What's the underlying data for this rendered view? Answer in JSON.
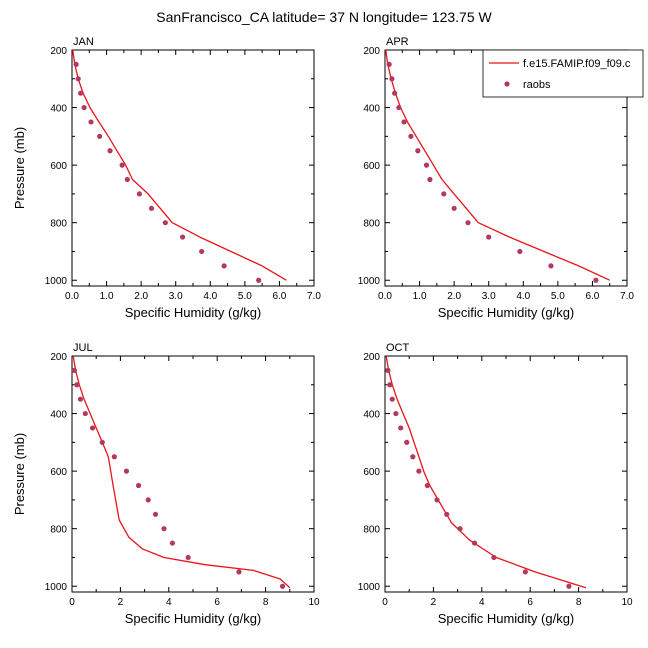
{
  "title": "SanFrancisco_CA  latitude= 37 N longitude= 123.75 W",
  "colors": {
    "model": "#e8141c",
    "obs": "#b33a5e",
    "axis": "#000000"
  },
  "legend": {
    "model_label": "f.e15.FAMIP.f09_f09.c",
    "obs_label": "raobs"
  },
  "chart_data": [
    {
      "type": "line",
      "panel": "JAN",
      "title": "JAN",
      "xlabel": "Specific Humidity (g/kg)",
      "ylabel": "Pressure (mb)",
      "xlim": [
        0,
        7
      ],
      "ylim": [
        200,
        1020
      ],
      "y_reversed": true,
      "xticks": [
        0,
        1,
        2,
        3,
        4,
        5,
        6,
        7
      ],
      "xtick_labels": [
        "0.0",
        "1.0",
        "2.0",
        "3.0",
        "4.0",
        "5.0",
        "6.0",
        "7.0"
      ],
      "yticks": [
        200,
        400,
        600,
        800,
        1000
      ],
      "ytick_labels": [
        "200",
        "400",
        "600",
        "800",
        "1000"
      ],
      "series": [
        {
          "name": "f.e15.FAMIP.f09_f09.c",
          "style": "line",
          "x": [
            0.02,
            0.08,
            0.18,
            0.32,
            0.52,
            0.78,
            1.05,
            1.3,
            1.55,
            1.75,
            2.2,
            2.9,
            3.7,
            4.6,
            5.5,
            6.2
          ],
          "y": [
            200,
            250,
            300,
            350,
            400,
            450,
            500,
            550,
            600,
            650,
            700,
            800,
            850,
            900,
            950,
            1000
          ]
        },
        {
          "name": "raobs",
          "style": "markers",
          "x": [
            0.12,
            0.18,
            0.25,
            0.35,
            0.55,
            0.8,
            1.1,
            1.45,
            1.6,
            1.95,
            2.3,
            2.7,
            3.2,
            3.75,
            4.4,
            5.4
          ],
          "y": [
            250,
            300,
            350,
            400,
            450,
            500,
            550,
            600,
            650,
            700,
            750,
            800,
            850,
            900,
            950,
            1000
          ]
        }
      ]
    },
    {
      "type": "line",
      "panel": "APR",
      "title": "APR",
      "xlabel": "Specific Humidity (g/kg)",
      "ylabel": "",
      "xlim": [
        0,
        7
      ],
      "ylim": [
        200,
        1020
      ],
      "y_reversed": true,
      "xticks": [
        0,
        1,
        2,
        3,
        4,
        5,
        6,
        7
      ],
      "xtick_labels": [
        "0.0",
        "1.0",
        "2.0",
        "3.0",
        "4.0",
        "5.0",
        "6.0",
        "7.0"
      ],
      "yticks": [
        200,
        400,
        600,
        800,
        1000
      ],
      "ytick_labels": [
        "200",
        "400",
        "600",
        "800",
        "1000"
      ],
      "series": [
        {
          "name": "f.e15.FAMIP.f09_f09.c",
          "style": "line",
          "x": [
            0.02,
            0.08,
            0.18,
            0.3,
            0.45,
            0.65,
            0.9,
            1.15,
            1.4,
            1.65,
            2.0,
            2.7,
            3.6,
            4.6,
            5.6,
            6.5
          ],
          "y": [
            200,
            250,
            300,
            350,
            400,
            450,
            500,
            550,
            600,
            650,
            700,
            800,
            850,
            900,
            950,
            1000
          ]
        },
        {
          "name": "raobs",
          "style": "markers",
          "x": [
            0.12,
            0.2,
            0.28,
            0.4,
            0.55,
            0.75,
            0.95,
            1.2,
            1.3,
            1.7,
            2.0,
            2.4,
            3.0,
            3.9,
            4.8,
            6.1
          ],
          "y": [
            250,
            300,
            350,
            400,
            450,
            500,
            550,
            600,
            650,
            700,
            750,
            800,
            850,
            900,
            950,
            1000
          ]
        }
      ]
    },
    {
      "type": "line",
      "panel": "JUL",
      "title": "JUL",
      "xlabel": "Specific Humidity (g/kg)",
      "ylabel": "Pressure (mb)",
      "xlim": [
        0,
        10
      ],
      "ylim": [
        200,
        1020
      ],
      "y_reversed": true,
      "xticks": [
        0,
        2,
        4,
        6,
        8,
        10
      ],
      "xtick_labels": [
        "0",
        "2",
        "4",
        "6",
        "8",
        "10"
      ],
      "yticks": [
        200,
        400,
        600,
        800,
        1000
      ],
      "ytick_labels": [
        "200",
        "400",
        "600",
        "800",
        "1000"
      ],
      "series": [
        {
          "name": "f.e15.FAMIP.f09_f09.c",
          "style": "line",
          "x": [
            0.05,
            0.15,
            0.3,
            0.5,
            0.75,
            1.0,
            1.25,
            1.5,
            1.7,
            1.95,
            2.35,
            2.9,
            3.8,
            5.5,
            7.5,
            8.6,
            9.0
          ],
          "y": [
            200,
            250,
            300,
            350,
            400,
            450,
            500,
            550,
            650,
            770,
            830,
            870,
            900,
            925,
            945,
            975,
            1005
          ]
        },
        {
          "name": "raobs",
          "style": "markers",
          "x": [
            0.1,
            0.2,
            0.35,
            0.55,
            0.85,
            1.25,
            1.75,
            2.25,
            2.75,
            3.15,
            3.45,
            3.8,
            4.15,
            4.8,
            6.9,
            8.7
          ],
          "y": [
            250,
            300,
            350,
            400,
            450,
            500,
            550,
            600,
            650,
            700,
            750,
            800,
            850,
            900,
            950,
            1000
          ]
        }
      ]
    },
    {
      "type": "line",
      "panel": "OCT",
      "title": "OCT",
      "xlabel": "Specific Humidity (g/kg)",
      "ylabel": "",
      "xlim": [
        0,
        10
      ],
      "ylim": [
        200,
        1020
      ],
      "y_reversed": true,
      "xticks": [
        0,
        2,
        4,
        6,
        8,
        10
      ],
      "xtick_labels": [
        "0",
        "2",
        "4",
        "6",
        "8",
        "10"
      ],
      "yticks": [
        200,
        400,
        600,
        800,
        1000
      ],
      "ytick_labels": [
        "200",
        "400",
        "600",
        "800",
        "1000"
      ],
      "series": [
        {
          "name": "f.e15.FAMIP.f09_f09.c",
          "style": "line",
          "x": [
            0.05,
            0.15,
            0.3,
            0.5,
            0.75,
            1.0,
            1.2,
            1.4,
            1.6,
            1.85,
            2.2,
            2.75,
            3.5,
            4.6,
            6.2,
            8.3
          ],
          "y": [
            200,
            250,
            300,
            350,
            400,
            450,
            500,
            550,
            600,
            650,
            700,
            780,
            840,
            900,
            950,
            1005
          ]
        },
        {
          "name": "raobs",
          "style": "markers",
          "x": [
            0.12,
            0.2,
            0.3,
            0.45,
            0.65,
            0.9,
            1.15,
            1.4,
            1.75,
            2.15,
            2.55,
            3.1,
            3.7,
            4.5,
            5.8,
            7.6
          ],
          "y": [
            250,
            300,
            350,
            400,
            450,
            500,
            550,
            600,
            650,
            700,
            750,
            800,
            850,
            900,
            950,
            1000
          ]
        }
      ]
    }
  ]
}
